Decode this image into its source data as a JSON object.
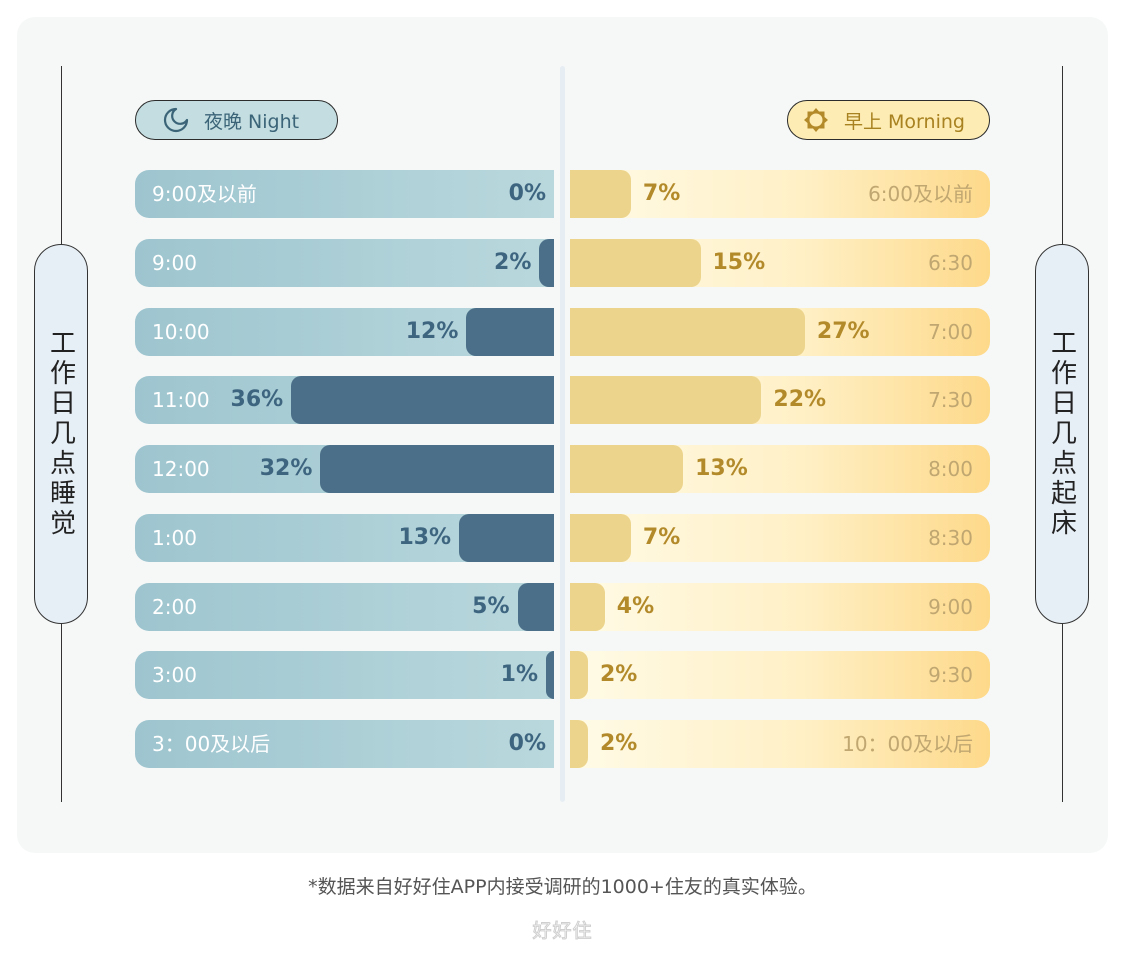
{
  "left_label": "工作日几点睡觉",
  "right_label": "工作日几点起床",
  "night_pill": {
    "icon": "moon-icon",
    "label": "夜晚 Night"
  },
  "morning_pill": {
    "icon": "sun-icon",
    "label": "早上 Morning"
  },
  "chart_data": {
    "type": "bar",
    "orientation": "horizontal",
    "layout": "diverging",
    "series": [
      {
        "name": "夜晚 Night",
        "categories": [
          "9:00及以前",
          "9:00",
          "10:00",
          "11:00",
          "12:00",
          "1:00",
          "2:00",
          "3:00",
          "3：00及以后"
        ],
        "values": [
          0,
          2,
          12,
          36,
          32,
          13,
          5,
          1,
          0
        ],
        "labels": [
          "0%",
          "2%",
          "12%",
          "36%",
          "32%",
          "13%",
          "5%",
          "1%",
          "0%"
        ],
        "color": "#4b6f88"
      },
      {
        "name": "早上 Morning",
        "categories": [
          "6:00及以前",
          "6:30",
          "7:00",
          "7:30",
          "8:00",
          "8:30",
          "9:00",
          "9:30",
          "10：00及以后"
        ],
        "values": [
          7,
          15,
          27,
          22,
          13,
          7,
          4,
          2,
          2
        ],
        "labels": [
          "7%",
          "15%",
          "27%",
          "22%",
          "13%",
          "7%",
          "4%",
          "2%",
          "2%"
        ],
        "color": "#ecd48c"
      }
    ],
    "unit": "%"
  },
  "footnote": "*数据来自好好住APP内接受调研的1000+住友的真实体验。",
  "brand": "好好住"
}
